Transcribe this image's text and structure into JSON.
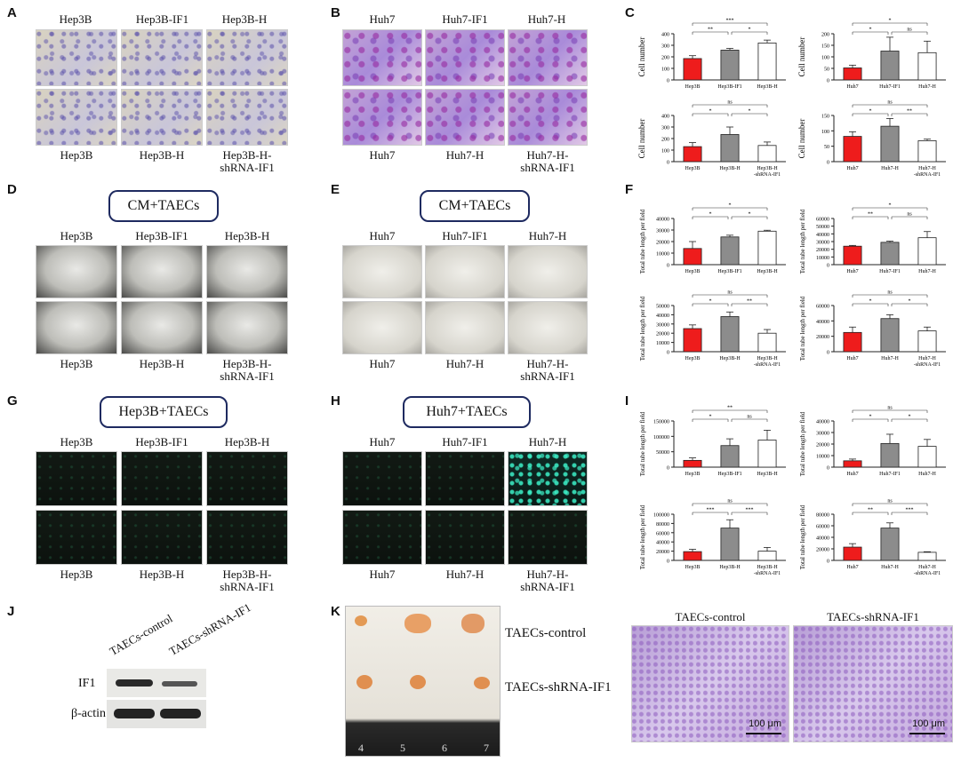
{
  "panels": {
    "A": {
      "letter": "A",
      "top": [
        "Hep3B",
        "Hep3B-IF1",
        "Hep3B-H"
      ],
      "bottom": [
        "Hep3B",
        "Hep3B-H",
        "Hep3B-H-\nshRNA-IF1"
      ]
    },
    "B": {
      "letter": "B",
      "top": [
        "Huh7",
        "Huh7-IF1",
        "Huh7-H"
      ],
      "bottom": [
        "Huh7",
        "Huh7-H",
        "Huh7-H-\nshRNA-IF1"
      ]
    },
    "C": {
      "letter": "C"
    },
    "D": {
      "letter": "D",
      "box": "CM+TAECs",
      "top": [
        "Hep3B",
        "Hep3B-IF1",
        "Hep3B-H"
      ],
      "bottom": [
        "Hep3B",
        "Hep3B-H",
        "Hep3B-H-\nshRNA-IF1"
      ]
    },
    "E": {
      "letter": "E",
      "box": "CM+TAECs",
      "top": [
        "Huh7",
        "Huh7-IF1",
        "Huh7-H"
      ],
      "bottom": [
        "Huh7",
        "Huh7-H",
        "Huh7-H-\nshRNA-IF1"
      ]
    },
    "F": {
      "letter": "F"
    },
    "G": {
      "letter": "G",
      "box": "Hep3B+TAECs",
      "top": [
        "Hep3B",
        "Hep3B-IF1",
        "Hep3B-H"
      ],
      "bottom": [
        "Hep3B",
        "Hep3B-H",
        "Hep3B-H-\nshRNA-IF1"
      ]
    },
    "H": {
      "letter": "H",
      "box": "Huh7+TAECs",
      "top": [
        "Huh7",
        "Huh7-IF1",
        "Huh7-H"
      ],
      "bottom": [
        "Huh7",
        "Huh7-H",
        "Huh7-H-\nshRNA-IF1"
      ]
    },
    "I": {
      "letter": "I"
    },
    "J": {
      "letter": "J",
      "lanes": [
        "TAECs-control",
        "TAECs-shRNA-IF1"
      ],
      "rows": [
        "IF1",
        "β-actin"
      ]
    },
    "K": {
      "letter": "K",
      "labels": [
        "TAECs-control",
        "TAECs-shRNA-IF1"
      ],
      "histo": [
        "TAECs-control",
        "TAECs-shRNA-IF1"
      ],
      "scale": "100 μm",
      "ruler": [
        "4",
        "5",
        "6",
        "7"
      ]
    }
  },
  "colors": {
    "red": "#ee1c1c",
    "grey": "#8c8c8c",
    "white": "#ffffff"
  },
  "chart_data": [
    {
      "id": "C1",
      "type": "bar",
      "ylabel": "Cell number",
      "categories": [
        "Hep3B",
        "Hep3B-IF1",
        "Hep3B-H"
      ],
      "values": [
        185,
        258,
        320
      ],
      "errors": [
        25,
        15,
        25
      ],
      "ylim": [
        0,
        400
      ],
      "yticks": [
        0,
        100,
        200,
        300,
        400
      ],
      "ytick_labels": [
        "0",
        "100",
        "200",
        "300",
        "400"
      ],
      "sig": [
        "**",
        "*",
        "***"
      ]
    },
    {
      "id": "C2",
      "type": "bar",
      "ylabel": "Cell number",
      "categories": [
        "Huh7",
        "Huh7-IF1",
        "Huh7-H"
      ],
      "values": [
        52,
        125,
        118
      ],
      "errors": [
        12,
        60,
        50
      ],
      "ylim": [
        0,
        200
      ],
      "yticks": [
        0,
        50,
        100,
        150,
        200
      ],
      "ytick_labels": [
        "0",
        "50",
        "100",
        "150",
        "200"
      ],
      "sig": [
        "*",
        "ns",
        "*"
      ]
    },
    {
      "id": "C3",
      "type": "bar",
      "ylabel": "Cell number",
      "categories": [
        "Hep3B",
        "Hep3B-H",
        "Hep3B-H\n-shRNA-IF1"
      ],
      "values": [
        130,
        235,
        140
      ],
      "errors": [
        35,
        65,
        30
      ],
      "ylim": [
        0,
        400
      ],
      "yticks": [
        0,
        100,
        200,
        300,
        400
      ],
      "ytick_labels": [
        "0",
        "100",
        "200",
        "300",
        "400"
      ],
      "sig": [
        "*",
        "*",
        "ns"
      ]
    },
    {
      "id": "C4",
      "type": "bar",
      "ylabel": "Cell number",
      "categories": [
        "Huh7",
        "Huh7-H",
        "Huh7-H\n-shRNA-IF1"
      ],
      "values": [
        82,
        115,
        68
      ],
      "errors": [
        15,
        25,
        5
      ],
      "ylim": [
        0,
        150
      ],
      "yticks": [
        0,
        50,
        100,
        150
      ],
      "ytick_labels": [
        "0",
        "50",
        "100",
        "150"
      ],
      "sig": [
        "*",
        "**",
        "ns"
      ]
    },
    {
      "id": "F1",
      "type": "bar",
      "ylabel": "Total tube length per field",
      "categories": [
        "Hep3B",
        "Hep3B-IF1",
        "Hep3B-H"
      ],
      "values": [
        14000,
        24000,
        29000
      ],
      "errors": [
        6000,
        1500,
        800
      ],
      "ylim": [
        0,
        40000
      ],
      "yticks": [
        0,
        10000,
        20000,
        30000,
        40000
      ],
      "ytick_labels": [
        "0",
        "10000",
        "20000",
        "30000",
        "40000"
      ],
      "sig": [
        "*",
        "*",
        "*"
      ]
    },
    {
      "id": "F2",
      "type": "bar",
      "ylabel": "Total tube length per field",
      "categories": [
        "Huh7",
        "Huh7-IF1",
        "Huh7-H"
      ],
      "values": [
        24000,
        29000,
        35000
      ],
      "errors": [
        1000,
        1500,
        8000
      ],
      "ylim": [
        0,
        60000
      ],
      "yticks": [
        0,
        10000,
        20000,
        30000,
        40000,
        50000,
        60000
      ],
      "ytick_labels": [
        "0",
        "10000",
        "20000",
        "30000",
        "40000",
        "50000",
        "60000"
      ],
      "sig": [
        "**",
        "ns",
        "*"
      ]
    },
    {
      "id": "F3",
      "type": "bar",
      "ylabel": "Total tube length per field",
      "categories": [
        "Hep3B",
        "Hep3B-H",
        "Hep3B-H\n-shRNA-IF1"
      ],
      "values": [
        25000,
        38000,
        20000
      ],
      "errors": [
        4000,
        5000,
        4000
      ],
      "ylim": [
        0,
        50000
      ],
      "yticks": [
        0,
        10000,
        20000,
        30000,
        40000,
        50000
      ],
      "ytick_labels": [
        "0",
        "10000",
        "20000",
        "30000",
        "40000",
        "50000"
      ],
      "sig": [
        "*",
        "**",
        "ns"
      ]
    },
    {
      "id": "F4",
      "type": "bar",
      "ylabel": "Total tube length per field",
      "categories": [
        "Huh7",
        "Huh7-H",
        "Huh7-H\n-shRNA-IF1"
      ],
      "values": [
        25000,
        43000,
        27000
      ],
      "errors": [
        7000,
        5000,
        5000
      ],
      "ylim": [
        0,
        60000
      ],
      "yticks": [
        0,
        20000,
        40000,
        60000
      ],
      "ytick_labels": [
        "0",
        "20000",
        "40000",
        "60000"
      ],
      "sig": [
        "*",
        "*",
        "ns"
      ]
    },
    {
      "id": "I1",
      "type": "bar",
      "ylabel": "Total tube length per field",
      "categories": [
        "Hep3B",
        "Hep3B-IF1",
        "Hep3B-H"
      ],
      "values": [
        22000,
        70000,
        88000
      ],
      "errors": [
        8000,
        22000,
        32000
      ],
      "ylim": [
        0,
        150000
      ],
      "yticks": [
        0,
        50000,
        100000,
        150000
      ],
      "ytick_labels": [
        "0",
        "50000",
        "100000",
        "150000"
      ],
      "sig": [
        "*",
        "ns",
        "**"
      ]
    },
    {
      "id": "I2",
      "type": "bar",
      "ylabel": "Total tube length per field",
      "categories": [
        "Huh7",
        "Huh7-IF1",
        "Huh7-H"
      ],
      "values": [
        5500,
        20500,
        18000
      ],
      "errors": [
        1500,
        8000,
        6000
      ],
      "ylim": [
        0,
        40000
      ],
      "yticks": [
        0,
        10000,
        20000,
        30000,
        40000
      ],
      "ytick_labels": [
        "0",
        "10000",
        "20000",
        "30000",
        "40000"
      ],
      "sig": [
        "*",
        "*",
        "ns"
      ]
    },
    {
      "id": "I3",
      "type": "bar",
      "ylabel": "Total tube length per field",
      "categories": [
        "Hep3B",
        "Hep3B-H",
        "Hep3B-H\n-shRNA-IF1"
      ],
      "values": [
        19000,
        70000,
        20000
      ],
      "errors": [
        5000,
        18000,
        8000
      ],
      "ylim": [
        0,
        100000
      ],
      "yticks": [
        0,
        20000,
        40000,
        60000,
        80000,
        100000
      ],
      "ytick_labels": [
        "0",
        "20000",
        "40000",
        "60000",
        "80000",
        "100000"
      ],
      "sig": [
        "***",
        "***",
        "ns"
      ]
    },
    {
      "id": "I4",
      "type": "bar",
      "ylabel": "Total tube length per field",
      "categories": [
        "Huh7",
        "Huh7-H",
        "Huh7-H\n-shRNA-IF1"
      ],
      "values": [
        23000,
        56000,
        14000
      ],
      "errors": [
        6000,
        9000,
        1000
      ],
      "ylim": [
        0,
        80000
      ],
      "yticks": [
        0,
        20000,
        40000,
        60000,
        80000
      ],
      "ytick_labels": [
        "0",
        "20000",
        "40000",
        "60000",
        "80000"
      ],
      "sig": [
        "**",
        "***",
        "ns"
      ]
    }
  ]
}
